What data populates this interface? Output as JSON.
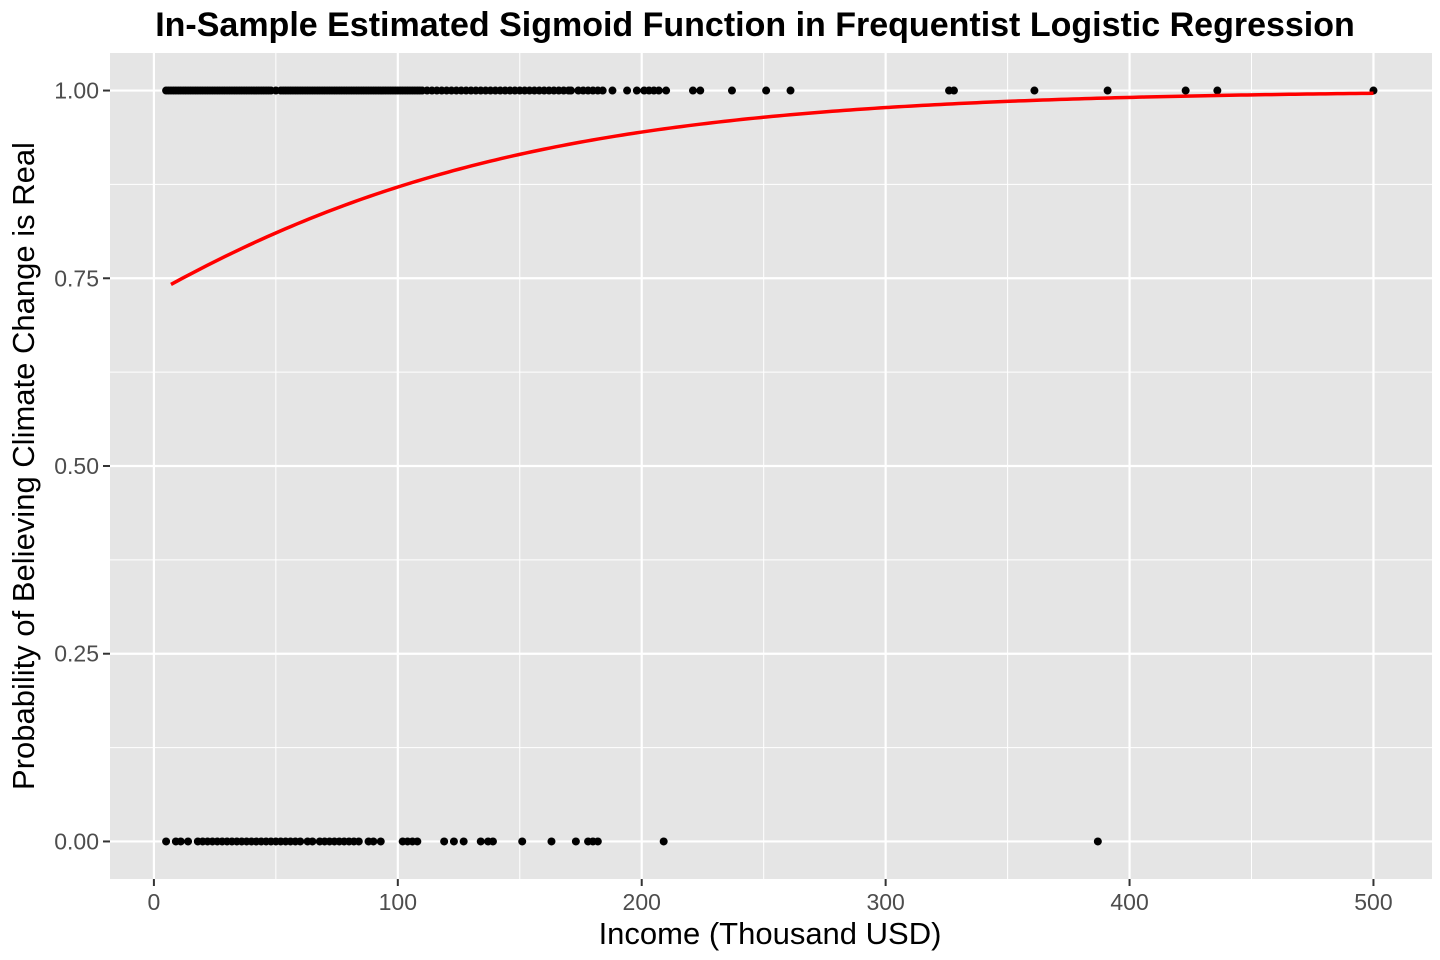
{
  "chart_data": {
    "type": "scatter",
    "title": "In-Sample Estimated Sigmoid Function in Frequentist Logistic Regression",
    "xlabel": "Income (Thousand USD)",
    "ylabel": "Probability of Believing Climate Change is Real",
    "xlim": [
      -18,
      524
    ],
    "ylim": [
      -0.05,
      1.05
    ],
    "x_ticks": [
      0,
      100,
      200,
      300,
      400,
      500
    ],
    "x_tick_labels": [
      "0",
      "100",
      "200",
      "300",
      "400",
      "500"
    ],
    "y_ticks": [
      0,
      0.25,
      0.5,
      0.75,
      1
    ],
    "y_tick_labels": [
      "0.00",
      "0.25",
      "0.50",
      "0.75",
      "1.00"
    ],
    "grid": true,
    "panel_background": "#e5e5e5",
    "grid_color": "#ffffff",
    "point_color": "#000000",
    "curve_color": "#ff0000",
    "series": [
      {
        "kind": "points",
        "y": 1,
        "x": [
          5,
          6,
          7,
          8,
          9,
          10,
          11,
          12,
          13,
          14,
          15,
          16,
          17,
          18,
          19,
          20,
          21,
          22,
          23,
          24,
          25,
          26,
          27,
          28,
          29,
          30,
          31,
          32,
          33,
          34,
          35,
          36,
          37,
          38,
          39,
          40,
          41,
          42,
          43,
          44,
          45,
          46,
          47,
          48,
          50,
          52,
          53,
          54,
          55,
          56,
          57,
          58,
          59,
          60,
          61,
          62,
          63,
          64,
          65,
          66,
          67,
          68,
          69,
          70,
          71,
          72,
          73,
          74,
          75,
          76,
          77,
          78,
          79,
          80,
          81,
          82,
          83,
          84,
          85,
          86,
          87,
          88,
          89,
          90,
          91,
          92,
          93,
          94,
          95,
          96,
          97,
          98,
          99,
          100,
          101,
          102,
          103,
          104,
          105,
          106,
          107,
          108,
          109,
          110,
          112,
          114,
          116,
          118,
          120,
          122,
          124,
          126,
          128,
          130,
          132,
          134,
          136,
          138,
          140,
          142,
          144,
          146,
          148,
          150,
          152,
          154,
          156,
          158,
          160,
          162,
          164,
          166,
          168,
          170,
          171,
          174,
          176,
          178,
          180,
          182,
          184,
          188,
          194,
          198,
          201,
          203,
          205,
          207,
          210,
          221,
          224,
          237,
          251,
          261,
          326,
          328,
          361,
          391,
          423,
          436,
          500
        ]
      },
      {
        "kind": "points",
        "y": 0,
        "x": [
          5,
          9,
          11,
          14,
          18,
          20,
          22,
          24,
          26,
          28,
          30,
          32,
          34,
          36,
          38,
          40,
          42,
          44,
          46,
          48,
          50,
          52,
          54,
          56,
          58,
          60,
          63,
          65,
          68,
          70,
          72,
          74,
          76,
          78,
          80,
          82,
          84,
          88,
          90,
          93,
          102,
          104,
          106,
          108,
          119,
          123,
          127,
          134,
          137,
          139,
          151,
          163,
          173,
          178,
          180,
          182,
          209,
          387
        ]
      },
      {
        "kind": "curve",
        "model": "logistic",
        "intercept": 0.9905,
        "slope": 0.00924,
        "x_min": 7,
        "x_max": 500
      }
    ]
  }
}
